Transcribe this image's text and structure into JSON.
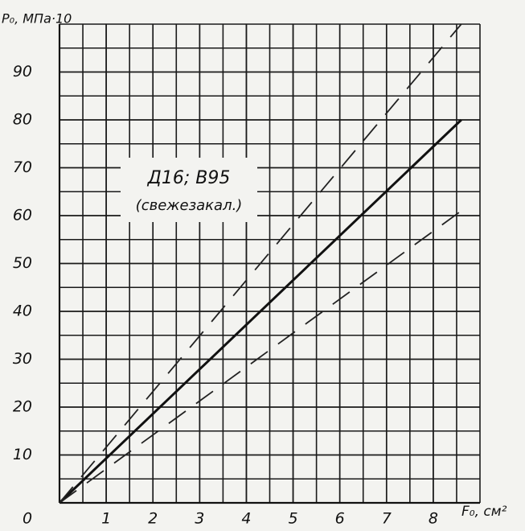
{
  "chart_data": {
    "type": "line",
    "ylabel": "P₀, МПа·10",
    "xlabel": "F₀, см²",
    "annotations": [
      "Д16; В95",
      "(свежезакал.)"
    ],
    "x": [
      0,
      8.6
    ],
    "series": [
      {
        "name": null,
        "color": "#111111",
        "style": "solid",
        "values": [
          0,
          80
        ]
      },
      {
        "name": null,
        "color": "#222222",
        "style": "dashed",
        "values": [
          0,
          100
        ]
      },
      {
        "name": null,
        "color": "#222222",
        "style": "dashed",
        "values": [
          0,
          61
        ]
      }
    ],
    "xlim": [
      0,
      9
    ],
    "ylim": [
      0,
      100
    ],
    "xticks": [
      0,
      1,
      2,
      3,
      4,
      5,
      6,
      7,
      8
    ],
    "yticks": [
      10,
      20,
      30,
      40,
      50,
      60,
      70,
      80,
      90
    ],
    "grid": true,
    "minor_grid": true
  }
}
